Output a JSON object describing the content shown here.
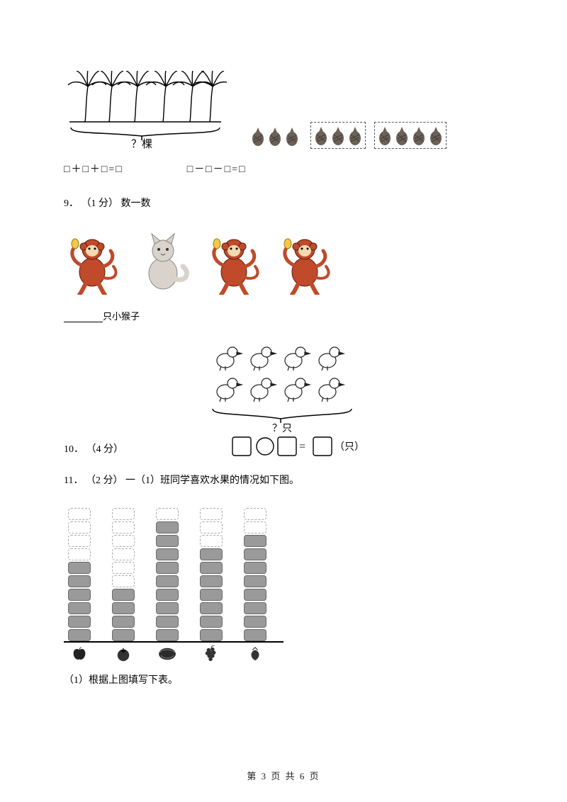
{
  "page": {
    "current": 3,
    "total": 6,
    "footer_text": "第 3 页 共 6 页"
  },
  "trees_question": {
    "label_under_brace": "？棵",
    "equation_left": "□＋□＋□=□",
    "equation_right": "□－□－□=□"
  },
  "pinecones": {
    "groups": [
      {
        "count": 3,
        "dashed": false
      },
      {
        "count": 3,
        "dashed": true
      },
      {
        "count": 4,
        "dashed": true
      }
    ],
    "item_color": "#6b6158"
  },
  "q9": {
    "number": "9．",
    "points": "（1 分）",
    "title": "数一数",
    "animals": [
      "monkey",
      "cat",
      "monkey",
      "monkey"
    ],
    "monkey_color": "#c04a2a",
    "cat_color": "#d9d3cc",
    "answer_label": "只小猴子"
  },
  "q10": {
    "number": "10．",
    "points": "（4 分）",
    "brace_label": "？只",
    "equation_unit": "（只）",
    "duck_rows": [
      4,
      4
    ]
  },
  "q11": {
    "number": "11．",
    "points": "（2 分）",
    "title": "一（1）班同学喜欢水果的情况如下图。",
    "sub1": "（1）根据上图填写下表。",
    "chart": {
      "type": "bar",
      "max_cells": 10,
      "categories": [
        "apple",
        "tomato",
        "watermelon",
        "grape",
        "strawberry"
      ],
      "values": [
        6,
        4,
        9,
        7,
        8
      ],
      "cell_filled_color": "#9a9a9a",
      "cell_empty_border": "#aaaaaa",
      "axis_color": "#000000"
    }
  }
}
